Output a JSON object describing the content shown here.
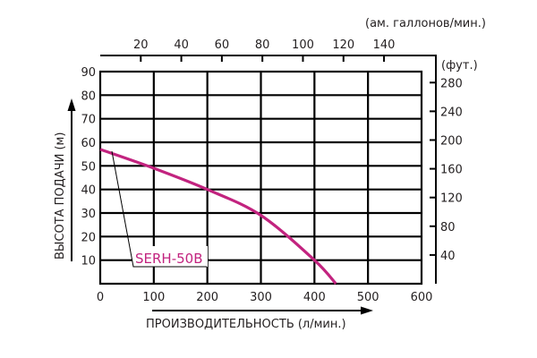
{
  "chart_data": {
    "type": "line",
    "title": "",
    "xlabel": "ПРОИЗВОДИТЕЛЬНОСТЬ (л/мин.)",
    "ylabel": "ВЫСОТА ПОДАЧИ (м)",
    "xlim": [
      0,
      600
    ],
    "ylim": [
      0,
      90
    ],
    "grid": true,
    "x_ticks": [
      "0",
      "100",
      "200",
      "300",
      "400",
      "500",
      "600"
    ],
    "y_ticks": [
      "10",
      "20",
      "30",
      "40",
      "50",
      "60",
      "70",
      "80",
      "90"
    ],
    "secondary_x_axis": {
      "label": "(ам. галлонов/мин.)",
      "ticks": [
        "20",
        "40",
        "60",
        "80",
        "100",
        "120",
        "140"
      ]
    },
    "secondary_y_axis": {
      "label": "(фут.)",
      "ticks": [
        "40",
        "80",
        "120",
        "160",
        "200",
        "240",
        "280"
      ]
    },
    "series": [
      {
        "name": "SERH-50B",
        "color": "#c2237f",
        "x": [
          0,
          100,
          200,
          300,
          400,
          440
        ],
        "y": [
          57,
          49,
          40,
          29,
          10,
          0
        ]
      }
    ],
    "legend": {
      "position": "inline-label-bottom-left"
    }
  },
  "colors": {
    "curve": "#c2237f",
    "grid": "#000000",
    "text": "#231f20"
  }
}
